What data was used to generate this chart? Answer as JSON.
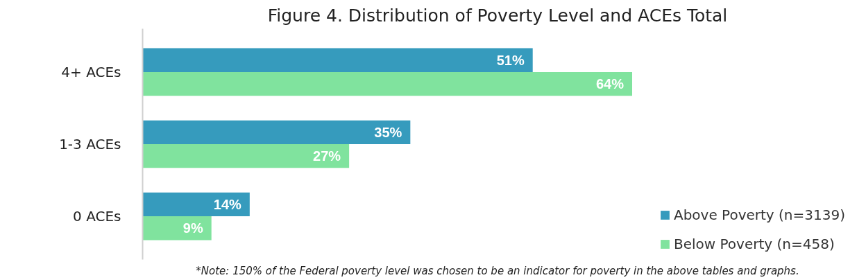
{
  "chart_data": {
    "type": "bar",
    "orientation": "horizontal",
    "title": "Figure 4. Distribution of Poverty Level and ACEs Total",
    "categories": [
      "4+ ACEs",
      "1-3 ACEs",
      "0 ACEs"
    ],
    "series": [
      {
        "name": "Above Poverty (n=3139)",
        "color": "#369bbd",
        "values": [
          51,
          35,
          14
        ],
        "value_labels": [
          "51%",
          "35%",
          "14%"
        ]
      },
      {
        "name": "Below Poverty (n=458)",
        "color": "#80e39e",
        "values": [
          64,
          27,
          9
        ],
        "value_labels": [
          "64%",
          "27%",
          "9%"
        ]
      }
    ],
    "legend": "right",
    "grid": false,
    "annotations": [
      "*Note: 150% of the Federal poverty level was chosen to be an indicator for poverty in the above tables and graphs."
    ]
  }
}
